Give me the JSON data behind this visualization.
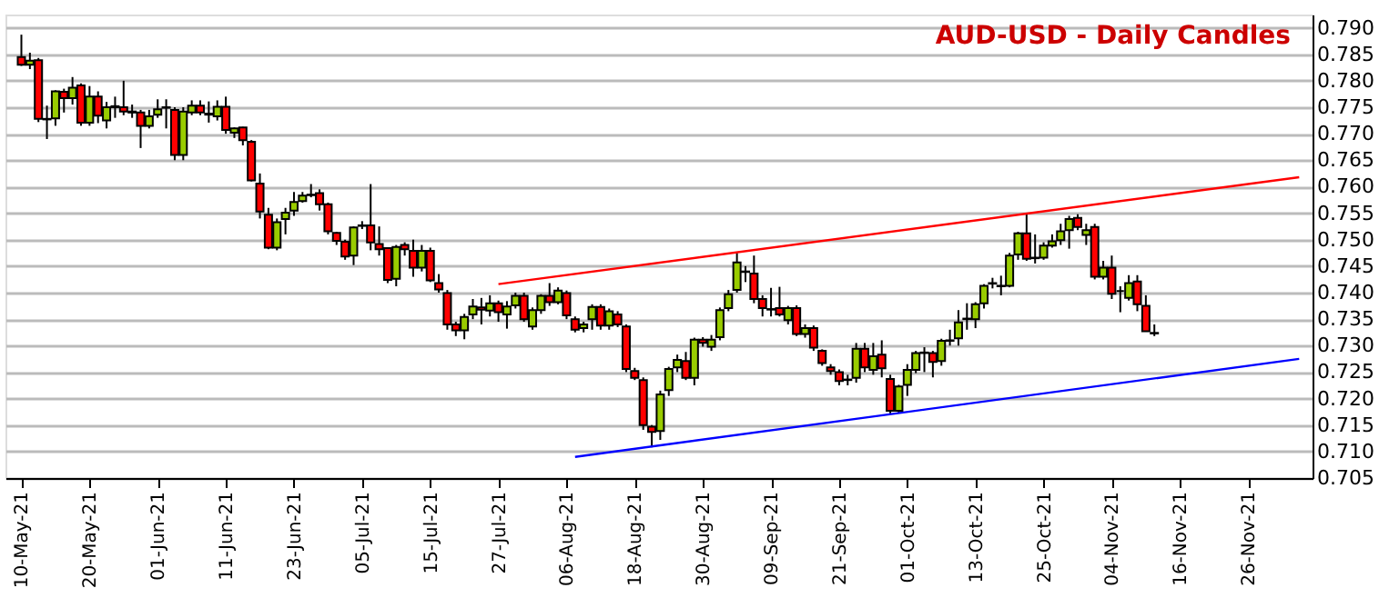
{
  "chart_data": {
    "type": "candlestick",
    "title": "AUD-USD - Daily Candles",
    "categories": [
      "10-May-21",
      null,
      null,
      null,
      null,
      null,
      null,
      null,
      "20-May-21",
      null,
      null,
      null,
      null,
      null,
      null,
      null,
      "01-Jun-21",
      null,
      null,
      null,
      null,
      null,
      null,
      null,
      "11-Jun-21",
      null,
      null,
      null,
      null,
      null,
      null,
      null,
      "23-Jun-21",
      null,
      null,
      null,
      null,
      null,
      null,
      null,
      "05-Jul-21",
      null,
      null,
      null,
      null,
      null,
      null,
      null,
      "15-Jul-21",
      null,
      null,
      null,
      null,
      null,
      null,
      null,
      "27-Jul-21",
      null,
      null,
      null,
      null,
      null,
      null,
      null,
      "06-Aug-21",
      null,
      null,
      null,
      null,
      null,
      null,
      null,
      "18-Aug-21",
      null,
      null,
      null,
      null,
      null,
      null,
      null,
      "30-Aug-21",
      null,
      null,
      null,
      null,
      null,
      null,
      null,
      "09-Sep-21",
      null,
      null,
      null,
      null,
      null,
      null,
      null,
      "21-Sep-21",
      null,
      null,
      null,
      null,
      null,
      null,
      null,
      "01-Oct-21",
      null,
      null,
      null,
      null,
      null,
      null,
      null,
      "13-Oct-21",
      null,
      null,
      null,
      null,
      null,
      null,
      null,
      "25-Oct-21",
      null,
      null,
      null,
      null,
      null,
      null,
      null,
      "04-Nov-21",
      null,
      null,
      null,
      null,
      null,
      null,
      null,
      "16-Nov-21",
      null,
      null,
      null,
      null,
      null,
      null,
      null,
      "26-Nov-21",
      null,
      null,
      null,
      null,
      null,
      null
    ],
    "ohlc": [
      [
        0.7845,
        0.7887,
        0.7828,
        0.783
      ],
      [
        0.783,
        0.7853,
        0.7822,
        0.7838
      ],
      [
        0.7839,
        0.7843,
        0.7722,
        0.7728
      ],
      [
        0.7727,
        0.7753,
        0.769,
        0.7728
      ],
      [
        0.7729,
        0.7782,
        0.7715,
        0.778
      ],
      [
        0.7779,
        0.7785,
        0.774,
        0.7767
      ],
      [
        0.7767,
        0.7807,
        0.7755,
        0.7787
      ],
      [
        0.7791,
        0.7795,
        0.7715,
        0.7721
      ],
      [
        0.7721,
        0.779,
        0.7715,
        0.777
      ],
      [
        0.777,
        0.778,
        0.772,
        0.7734
      ],
      [
        0.7725,
        0.776,
        0.771,
        0.775
      ],
      [
        0.775,
        0.777,
        0.773,
        0.7752
      ],
      [
        0.775,
        0.78,
        0.7735,
        0.7742
      ],
      [
        0.7742,
        0.7755,
        0.773,
        0.774
      ],
      [
        0.774,
        0.7745,
        0.7673,
        0.7715
      ],
      [
        0.7715,
        0.7745,
        0.771,
        0.7733
      ],
      [
        0.7736,
        0.7765,
        0.773,
        0.7746
      ],
      [
        0.7749,
        0.7765,
        0.771,
        0.775
      ],
      [
        0.7745,
        0.775,
        0.765,
        0.766
      ],
      [
        0.766,
        0.775,
        0.765,
        0.7742
      ],
      [
        0.774,
        0.7763,
        0.7735,
        0.7753
      ],
      [
        0.7753,
        0.7763,
        0.7735,
        0.774
      ],
      [
        0.7738,
        0.7761,
        0.7721,
        0.7736
      ],
      [
        0.7733,
        0.7763,
        0.7725,
        0.7751
      ],
      [
        0.7751,
        0.777,
        0.77,
        0.7707
      ],
      [
        0.7702,
        0.7712,
        0.7692,
        0.771
      ],
      [
        0.7712,
        0.7713,
        0.7678,
        0.7688
      ],
      [
        0.7685,
        0.7688,
        0.761,
        0.7612
      ],
      [
        0.7606,
        0.7625,
        0.754,
        0.7553
      ],
      [
        0.7547,
        0.756,
        0.7482,
        0.7485
      ],
      [
        0.7485,
        0.754,
        0.748,
        0.7533
      ],
      [
        0.7539,
        0.756,
        0.751,
        0.7551
      ],
      [
        0.7555,
        0.759,
        0.7545,
        0.7571
      ],
      [
        0.7573,
        0.759,
        0.757,
        0.7583
      ],
      [
        0.7584,
        0.7605,
        0.758,
        0.7585
      ],
      [
        0.7588,
        0.7595,
        0.7555,
        0.7567
      ],
      [
        0.7567,
        0.757,
        0.751,
        0.7516
      ],
      [
        0.7513,
        0.7515,
        0.749,
        0.7498
      ],
      [
        0.7496,
        0.75,
        0.7462,
        0.7468
      ],
      [
        0.747,
        0.7525,
        0.7452,
        0.7523
      ],
      [
        0.7526,
        0.7535,
        0.752,
        0.7527
      ],
      [
        0.7527,
        0.7605,
        0.748,
        0.7495
      ],
      [
        0.7492,
        0.7525,
        0.747,
        0.7482
      ],
      [
        0.7484,
        0.7485,
        0.7418,
        0.7424
      ],
      [
        0.7426,
        0.749,
        0.7412,
        0.7486
      ],
      [
        0.749,
        0.7495,
        0.747,
        0.7482
      ],
      [
        0.7479,
        0.75,
        0.743,
        0.7447
      ],
      [
        0.7447,
        0.749,
        0.744,
        0.7479
      ],
      [
        0.7479,
        0.7485,
        0.742,
        0.7423
      ],
      [
        0.7418,
        0.7435,
        0.74,
        0.7406
      ],
      [
        0.7399,
        0.7405,
        0.733,
        0.734
      ],
      [
        0.734,
        0.7345,
        0.7318,
        0.7329
      ],
      [
        0.7329,
        0.736,
        0.7312,
        0.7354
      ],
      [
        0.7359,
        0.7388,
        0.735,
        0.7374
      ],
      [
        0.7372,
        0.739,
        0.734,
        0.7368
      ],
      [
        0.7366,
        0.7395,
        0.7355,
        0.738
      ],
      [
        0.738,
        0.7385,
        0.7345,
        0.7363
      ],
      [
        0.7359,
        0.7384,
        0.7332,
        0.7374
      ],
      [
        0.7376,
        0.74,
        0.737,
        0.7394
      ],
      [
        0.7394,
        0.74,
        0.7345,
        0.735
      ],
      [
        0.7336,
        0.7372,
        0.733,
        0.7367
      ],
      [
        0.7367,
        0.7397,
        0.736,
        0.7394
      ],
      [
        0.7394,
        0.7418,
        0.7375,
        0.7382
      ],
      [
        0.7382,
        0.741,
        0.7378,
        0.7404
      ],
      [
        0.7399,
        0.7404,
        0.735,
        0.7357
      ],
      [
        0.735,
        0.7355,
        0.7325,
        0.733
      ],
      [
        0.7333,
        0.7345,
        0.7325,
        0.734
      ],
      [
        0.735,
        0.7378,
        0.733,
        0.7373
      ],
      [
        0.7373,
        0.7378,
        0.733,
        0.7338
      ],
      [
        0.7338,
        0.737,
        0.733,
        0.7365
      ],
      [
        0.7359,
        0.7365,
        0.7335,
        0.734
      ],
      [
        0.7336,
        0.734,
        0.725,
        0.7256
      ],
      [
        0.7252,
        0.7258,
        0.7235,
        0.7239
      ],
      [
        0.7235,
        0.724,
        0.7141,
        0.715
      ],
      [
        0.7147,
        0.715,
        0.7108,
        0.7137
      ],
      [
        0.7139,
        0.7215,
        0.7122,
        0.7208
      ],
      [
        0.7216,
        0.726,
        0.7205,
        0.7256
      ],
      [
        0.7259,
        0.7283,
        0.725,
        0.7273
      ],
      [
        0.7271,
        0.7288,
        0.7235,
        0.7239
      ],
      [
        0.7239,
        0.7315,
        0.7225,
        0.7311
      ],
      [
        0.7311,
        0.7316,
        0.7298,
        0.7305
      ],
      [
        0.7298,
        0.732,
        0.729,
        0.7311
      ],
      [
        0.7316,
        0.7372,
        0.731,
        0.7367
      ],
      [
        0.7371,
        0.7405,
        0.7365,
        0.7397
      ],
      [
        0.7405,
        0.7475,
        0.74,
        0.7457
      ],
      [
        0.7439,
        0.745,
        0.742,
        0.744
      ],
      [
        0.7436,
        0.747,
        0.738,
        0.7388
      ],
      [
        0.7388,
        0.7395,
        0.7355,
        0.7371
      ],
      [
        0.7369,
        0.7409,
        0.7355,
        0.7368
      ],
      [
        0.7371,
        0.7411,
        0.7355,
        0.7359
      ],
      [
        0.7348,
        0.7375,
        0.734,
        0.7371
      ],
      [
        0.7371,
        0.7376,
        0.7318,
        0.7322
      ],
      [
        0.7322,
        0.734,
        0.7315,
        0.7333
      ],
      [
        0.7333,
        0.7338,
        0.729,
        0.7296
      ],
      [
        0.729,
        0.7293,
        0.7262,
        0.7267
      ],
      [
        0.7259,
        0.7265,
        0.7245,
        0.7252
      ],
      [
        0.725,
        0.7255,
        0.7225,
        0.7233
      ],
      [
        0.7236,
        0.7245,
        0.7225,
        0.7235
      ],
      [
        0.7239,
        0.7305,
        0.723,
        0.7294
      ],
      [
        0.7294,
        0.7305,
        0.725,
        0.7259
      ],
      [
        0.7254,
        0.7305,
        0.7245,
        0.728
      ],
      [
        0.7283,
        0.731,
        0.724,
        0.7257
      ],
      [
        0.7237,
        0.7245,
        0.7172,
        0.7177
      ],
      [
        0.7177,
        0.7226,
        0.7172,
        0.7223
      ],
      [
        0.7226,
        0.7265,
        0.7205,
        0.7254
      ],
      [
        0.7254,
        0.729,
        0.7248,
        0.7286
      ],
      [
        0.7286,
        0.7297,
        0.725,
        0.7287
      ],
      [
        0.7286,
        0.729,
        0.724,
        0.7269
      ],
      [
        0.7271,
        0.7313,
        0.7262,
        0.7309
      ],
      [
        0.7309,
        0.733,
        0.73,
        0.731
      ],
      [
        0.7314,
        0.7367,
        0.73,
        0.7344
      ],
      [
        0.735,
        0.738,
        0.733,
        0.7351
      ],
      [
        0.735,
        0.7382,
        0.7333,
        0.7378
      ],
      [
        0.738,
        0.7416,
        0.737,
        0.7413
      ],
      [
        0.7417,
        0.7428,
        0.7408,
        0.7418
      ],
      [
        0.7413,
        0.7432,
        0.7395,
        0.7412
      ],
      [
        0.7413,
        0.7475,
        0.741,
        0.747
      ],
      [
        0.7472,
        0.7515,
        0.7462,
        0.7512
      ],
      [
        0.7512,
        0.7548,
        0.746,
        0.7464
      ],
      [
        0.7466,
        0.751,
        0.7455,
        0.7465
      ],
      [
        0.7466,
        0.7495,
        0.7462,
        0.7489
      ],
      [
        0.7489,
        0.751,
        0.7485,
        0.7497
      ],
      [
        0.7499,
        0.753,
        0.749,
        0.7516
      ],
      [
        0.7518,
        0.7545,
        0.7483,
        0.7539
      ],
      [
        0.7541,
        0.7548,
        0.7518,
        0.7524
      ],
      [
        0.7509,
        0.753,
        0.749,
        0.7518
      ],
      [
        0.7524,
        0.753,
        0.7425,
        0.743
      ],
      [
        0.743,
        0.746,
        0.7425,
        0.7447
      ],
      [
        0.7447,
        0.747,
        0.7388,
        0.7398
      ],
      [
        0.7403,
        0.7412,
        0.7363,
        0.7403
      ],
      [
        0.739,
        0.7433,
        0.7385,
        0.7418
      ],
      [
        0.7421,
        0.7433,
        0.7365,
        0.7378
      ],
      [
        0.7375,
        0.7395,
        0.7327,
        0.7327
      ],
      [
        0.7323,
        0.734,
        0.7318,
        0.7324
      ],
      null,
      null,
      null,
      null,
      null,
      null,
      null,
      null,
      null,
      null,
      null,
      null,
      null,
      null,
      null,
      null,
      null
    ],
    "series": [
      {
        "type": "line",
        "color": "#ff0000",
        "values": [
          null,
          null,
          null,
          null,
          null,
          null,
          null,
          null,
          null,
          null,
          null,
          null,
          null,
          null,
          null,
          null,
          null,
          null,
          null,
          null,
          null,
          null,
          null,
          null,
          null,
          null,
          null,
          null,
          null,
          null,
          null,
          null,
          null,
          null,
          null,
          null,
          null,
          null,
          null,
          null,
          null,
          null,
          null,
          null,
          null,
          null,
          null,
          null,
          null,
          null,
          null,
          null,
          null,
          null,
          null,
          null,
          0.7416,
          null,
          null,
          null,
          null,
          null,
          null,
          null,
          null,
          null,
          null,
          null,
          null,
          null,
          null,
          null,
          null,
          null,
          null,
          null,
          null,
          null,
          null,
          null,
          null,
          null,
          null,
          null,
          null,
          null,
          null,
          null,
          null,
          null,
          null,
          null,
          null,
          null,
          null,
          null,
          null,
          null,
          null,
          null,
          null,
          null,
          null,
          null,
          null,
          null,
          null,
          null,
          null,
          null,
          null,
          null,
          null,
          null,
          null,
          null,
          null,
          null,
          null,
          null,
          null,
          null,
          null,
          null,
          null,
          null,
          null,
          null,
          null,
          null,
          null,
          null,
          null,
          null,
          null,
          null,
          null,
          null,
          null,
          null,
          null,
          null,
          null,
          null,
          null,
          null,
          null,
          null,
          null,
          null,
          0.7618
        ]
      },
      {
        "type": "line",
        "color": "#0000ff",
        "values": [
          null,
          null,
          null,
          null,
          null,
          null,
          null,
          null,
          null,
          null,
          null,
          null,
          null,
          null,
          null,
          null,
          null,
          null,
          null,
          null,
          null,
          null,
          null,
          null,
          null,
          null,
          null,
          null,
          null,
          null,
          null,
          null,
          null,
          null,
          null,
          null,
          null,
          null,
          null,
          null,
          null,
          null,
          null,
          null,
          null,
          null,
          null,
          null,
          null,
          null,
          null,
          null,
          null,
          null,
          null,
          null,
          null,
          null,
          null,
          null,
          null,
          null,
          null,
          null,
          null,
          0.709,
          null,
          null,
          null,
          null,
          null,
          null,
          null,
          null,
          null,
          null,
          null,
          null,
          null,
          null,
          null,
          null,
          null,
          null,
          null,
          null,
          null,
          null,
          null,
          null,
          null,
          null,
          null,
          null,
          null,
          null,
          null,
          null,
          null,
          null,
          null,
          null,
          null,
          null,
          null,
          null,
          null,
          null,
          null,
          null,
          null,
          null,
          null,
          null,
          null,
          null,
          null,
          null,
          null,
          null,
          null,
          null,
          null,
          null,
          null,
          null,
          null,
          null,
          null,
          null,
          null,
          null,
          null,
          null,
          null,
          null,
          null,
          null,
          null,
          null,
          null,
          null,
          null,
          null,
          null,
          null,
          null,
          null,
          null,
          null,
          0.7275
        ]
      }
    ],
    "ylim": [
      0.705,
      0.7925
    ],
    "yticks": [
      0.705,
      {
        "value": 0.71,
        "label": "0.710"
      },
      0.715,
      {
        "value": 0.72,
        "label": "0.720"
      },
      0.725,
      {
        "value": 0.73,
        "label": "0.730"
      },
      0.735,
      {
        "value": 0.74,
        "label": "0.740"
      },
      0.745,
      {
        "value": 0.75,
        "label": "0.750"
      },
      0.755,
      {
        "value": 0.76,
        "label": "0.760"
      },
      0.765,
      {
        "value": 0.77,
        "label": "0.770"
      },
      0.775,
      {
        "value": 0.78,
        "label": "0.780"
      },
      0.785,
      {
        "value": 0.79,
        "label": "0.790"
      }
    ],
    "grid": "y"
  }
}
